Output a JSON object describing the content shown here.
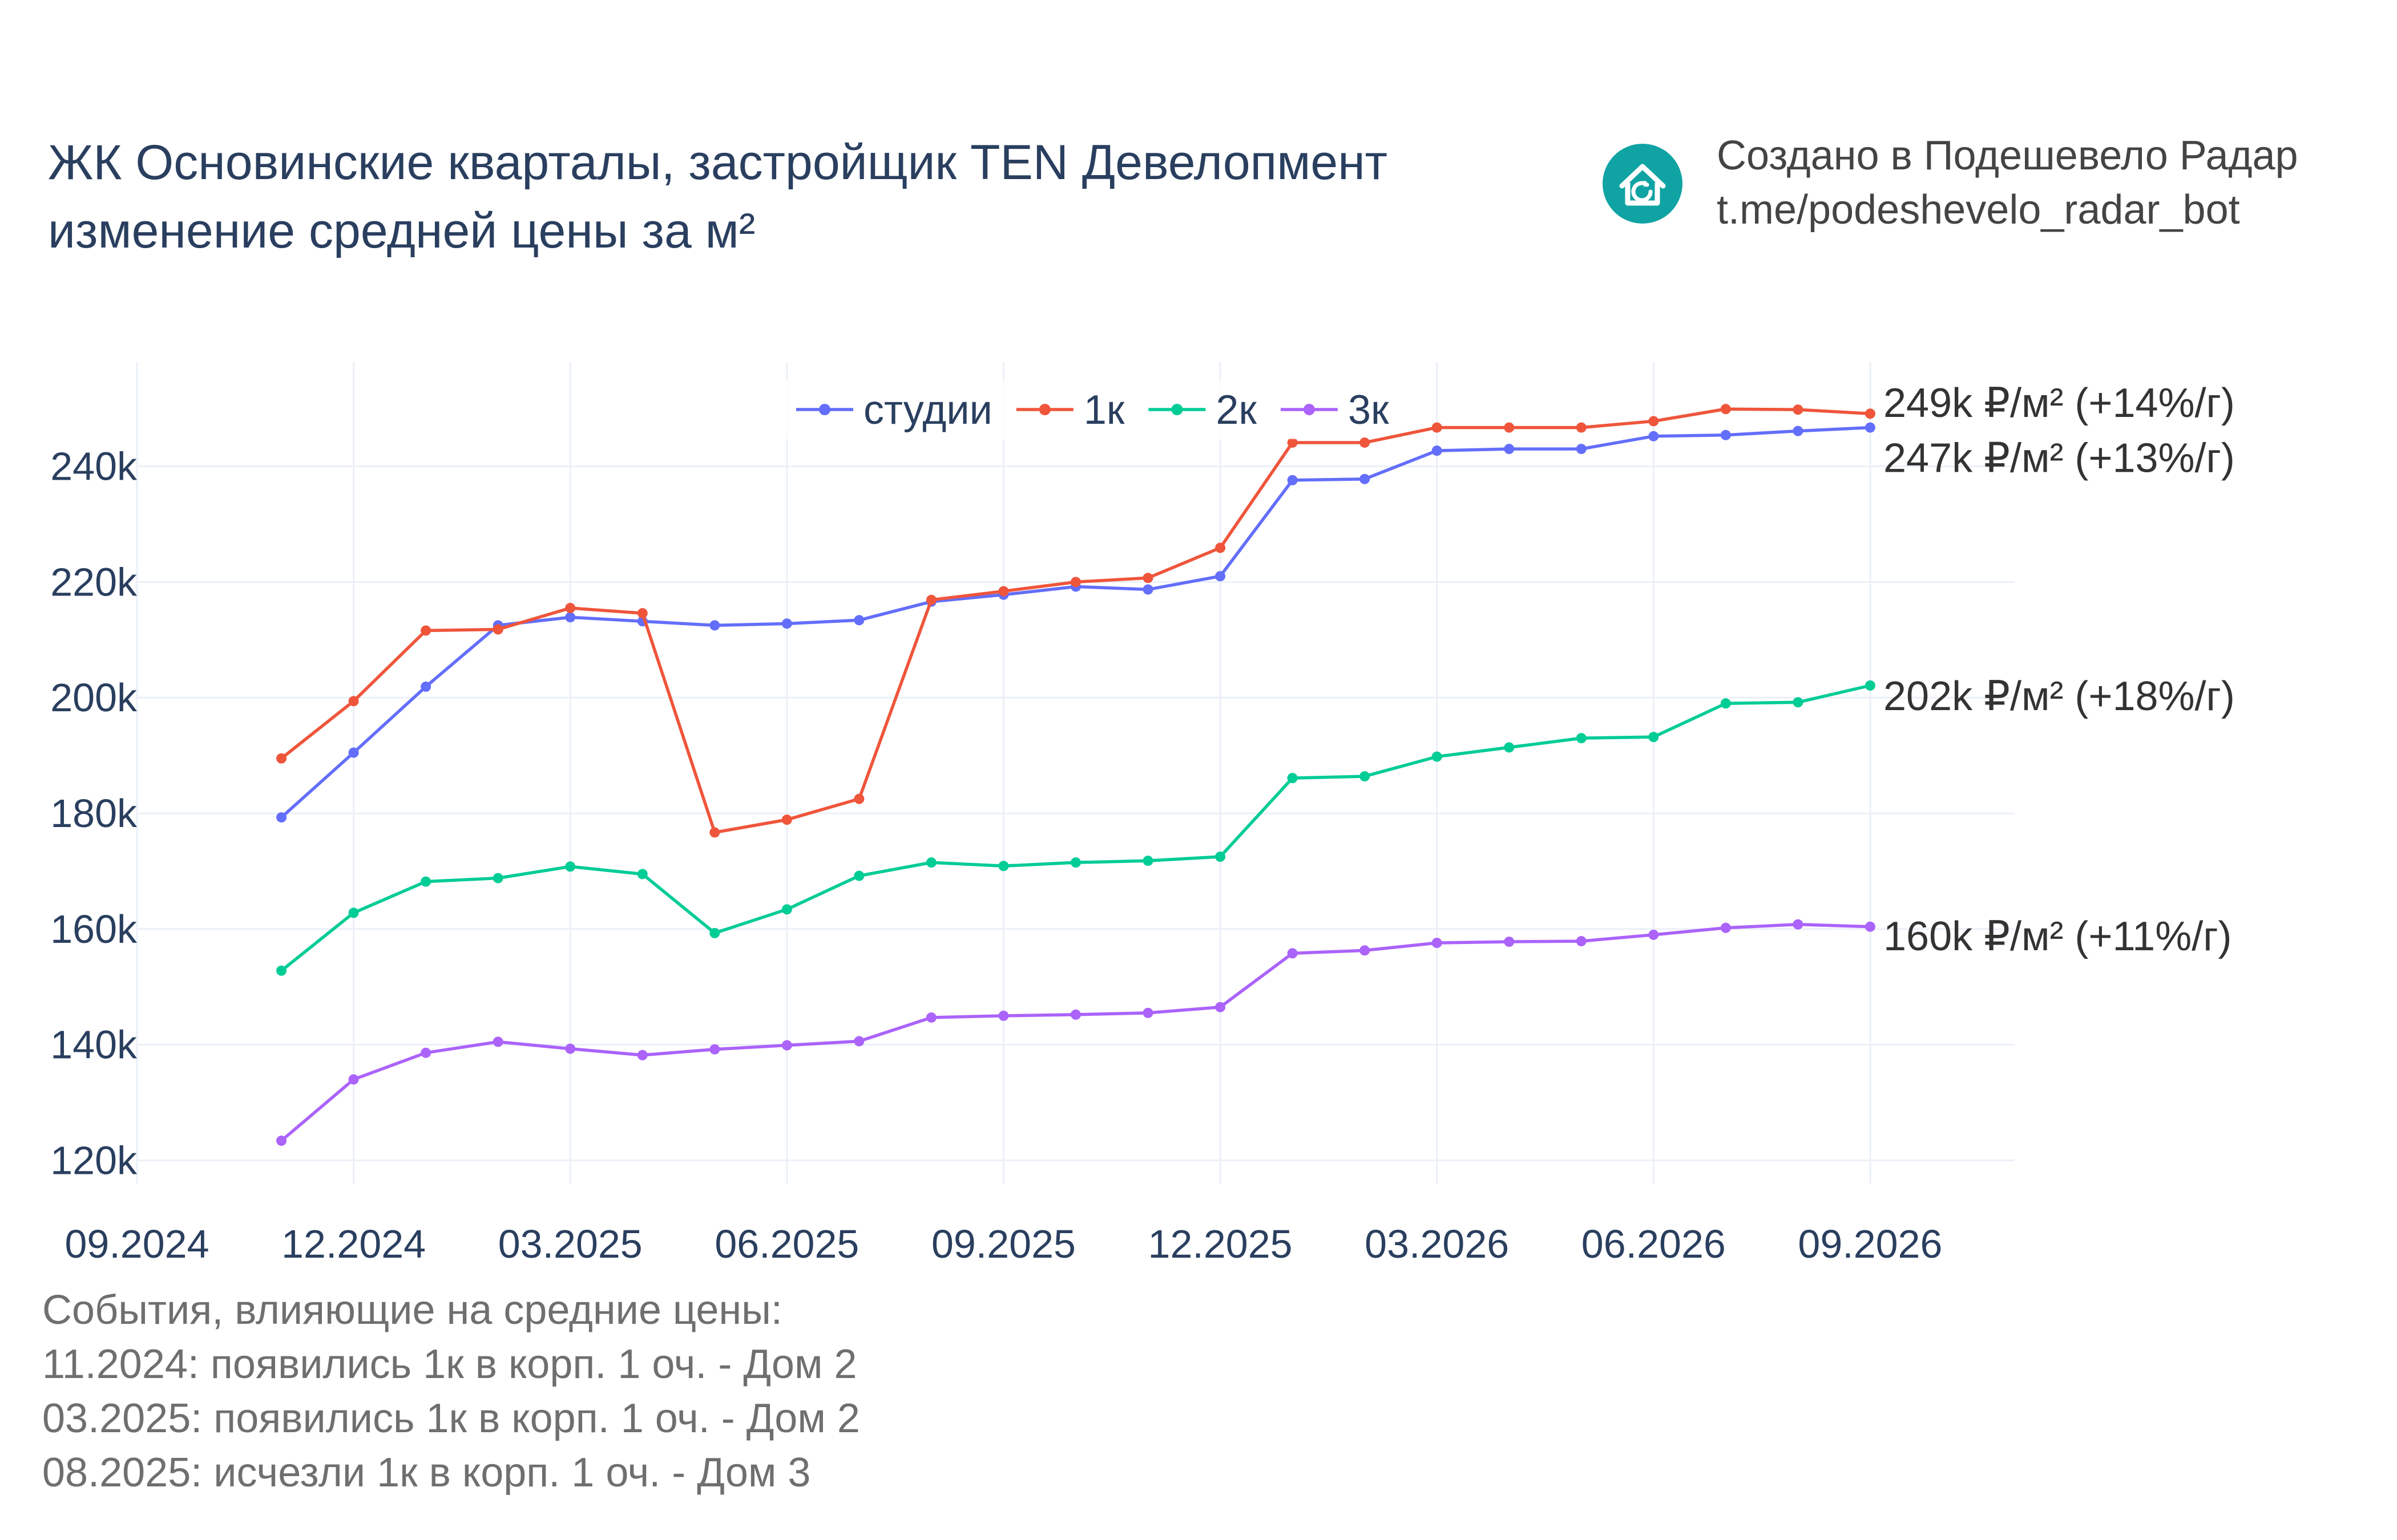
{
  "header": {
    "title_line1": "ЖК Основинские кварталы, застройщик TEN Девелопмент",
    "title_line2": "изменение средней цены за м²"
  },
  "credit": {
    "icon": "house-refresh-icon",
    "line1": "Создано в Подешевело Радар",
    "line2": "t.me/podeshevelo_radar_bot",
    "logo_color": "#0fa3a3"
  },
  "events": {
    "heading": "События, влияющие на средние цены:",
    "items": [
      "11.2024: появились 1к в корп. 1 оч. - Дом 2",
      "03.2025: появились 1к в корп. 1 оч. - Дом 2",
      "08.2025: исчезли 1к в корп. 1 оч. - Дом 3"
    ]
  },
  "chart_data": {
    "type": "line",
    "x": [
      "2024-11",
      "2024-12",
      "2025-01",
      "2025-02",
      "2025-03",
      "2025-04",
      "2025-05",
      "2025-06",
      "2025-07",
      "2025-08",
      "2025-09",
      "2025-10",
      "2025-11",
      "2025-12",
      "2026-01",
      "2026-02",
      "2026-03",
      "2026-04",
      "2026-05",
      "2026-06",
      "2026-07",
      "2026-08",
      "2026-09"
    ],
    "xlim": [
      "2024-09",
      "2026-11"
    ],
    "x_ticks": [
      "09.2024",
      "12.2024",
      "03.2025",
      "06.2025",
      "09.2025",
      "12.2025",
      "03.2026",
      "06.2026",
      "09.2026"
    ],
    "ylim": [
      116000,
      258000
    ],
    "y_ticks": [
      "120k",
      "140k",
      "160k",
      "180k",
      "200k",
      "220k",
      "240k"
    ],
    "grid": true,
    "legend_position": "top-center",
    "series": [
      {
        "name": "студии",
        "color": "#636efa",
        "values": [
          179300,
          190500,
          201900,
          212500,
          213900,
          213200,
          212500,
          212800,
          213400,
          216600,
          217800,
          219200,
          218700,
          221000,
          237600,
          237800,
          242700,
          243000,
          243000,
          245200,
          245400,
          246100,
          246700
        ]
      },
      {
        "name": "1к",
        "color": "#ef553b",
        "values": [
          189500,
          199400,
          211600,
          211800,
          215500,
          214600,
          176700,
          178900,
          182500,
          216900,
          218400,
          220000,
          220700,
          225900,
          244100,
          244100,
          246700,
          246700,
          246700,
          247800,
          249900,
          249800,
          249100
        ]
      },
      {
        "name": "2к",
        "color": "#00cc96",
        "values": [
          152800,
          162800,
          168200,
          168800,
          170800,
          169500,
          159300,
          163400,
          169200,
          171500,
          170900,
          171500,
          171800,
          172500,
          186100,
          186400,
          189800,
          191400,
          193000,
          193200,
          199000,
          199200,
          202100
        ]
      },
      {
        "name": "3к",
        "color": "#ab63fa",
        "values": [
          123400,
          134000,
          138600,
          140500,
          139300,
          138200,
          139200,
          139900,
          140600,
          144700,
          145000,
          145200,
          145500,
          146500,
          155800,
          156300,
          157600,
          157800,
          157900,
          159000,
          160200,
          160800,
          160400
        ]
      }
    ],
    "end_labels": [
      {
        "series": "1к",
        "text": "249k ₽/м² (+14%/г)",
        "value": 251000
      },
      {
        "series": "студии",
        "text": "247k ₽/м² (+13%/г)",
        "value": 241500
      },
      {
        "series": "2к",
        "text": "202k ₽/м² (+18%/г)",
        "value": 200300
      },
      {
        "series": "3к",
        "text": "160k ₽/м² (+11%/г)",
        "value": 158800
      }
    ]
  }
}
